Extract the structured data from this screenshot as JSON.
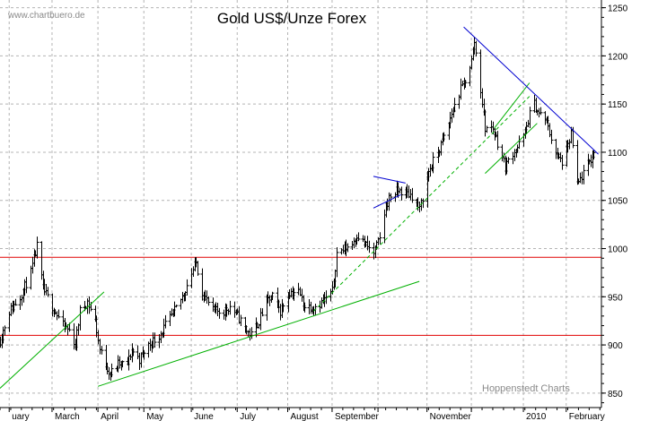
{
  "chart_data": {
    "type": "ohlc",
    "title": "Gold US$/Unze Forex",
    "source_label": "www.chartbuero.de",
    "credit": "Hoppenstedt Charts",
    "ylim": [
      835,
      1258
    ],
    "y_ticks": [
      850,
      900,
      950,
      1000,
      1050,
      1100,
      1150,
      1200,
      1250
    ],
    "x_domain": [
      "2009-01-27",
      "2010-02-24"
    ],
    "x_ticks": [
      {
        "label": "uary",
        "date": "2009-02-02"
      },
      {
        "label": "March",
        "date": "2009-03-02"
      },
      {
        "label": "April",
        "date": "2009-04-01"
      },
      {
        "label": "May",
        "date": "2009-05-01"
      },
      {
        "label": "June",
        "date": "2009-06-01"
      },
      {
        "label": "July",
        "date": "2009-07-01"
      },
      {
        "label": "August",
        "date": "2009-08-03"
      },
      {
        "label": "September",
        "date": "2009-09-01"
      },
      {
        "label": "",
        "date": "2009-10-01"
      },
      {
        "label": "November",
        "date": "2009-11-02"
      },
      {
        "label": "",
        "date": "2009-12-01"
      },
      {
        "label": "2010",
        "date": "2010-01-04"
      },
      {
        "label": "February",
        "date": "2010-02-01"
      }
    ],
    "grid": true,
    "colors": {
      "bars": "#000000",
      "grid": "#b4b4b4",
      "support_line": "#e00000",
      "uptrend": "#00b000",
      "downtrend": "#0000d0"
    },
    "horizontal_levels": [
      991,
      910
    ],
    "trendlines": [
      {
        "style": "uptrend",
        "dashed": false,
        "from": [
          "2009-01-27",
          855
        ],
        "to": [
          "2009-04-05",
          955
        ]
      },
      {
        "style": "uptrend",
        "dashed": false,
        "from": [
          "2009-04-01",
          857
        ],
        "to": [
          "2009-10-28",
          966
        ]
      },
      {
        "style": "uptrend",
        "dashed": true,
        "from": [
          "2009-08-20",
          935
        ],
        "to": [
          "2010-01-08",
          1158
        ]
      },
      {
        "style": "uptrend",
        "dashed": false,
        "from": [
          "2009-12-10",
          1078
        ],
        "to": [
          "2010-01-13",
          1130
        ]
      },
      {
        "style": "uptrend",
        "dashed": false,
        "from": [
          "2009-12-16",
          1125
        ],
        "to": [
          "2010-01-08",
          1172
        ]
      },
      {
        "style": "downtrend",
        "dashed": false,
        "from": [
          "2009-11-26",
          1230
        ],
        "to": [
          "2010-02-22",
          1098
        ]
      },
      {
        "style": "downtrend",
        "dashed": false,
        "from": [
          "2009-09-28",
          1075
        ],
        "to": [
          "2009-10-19",
          1068
        ]
      },
      {
        "style": "downtrend",
        "dashed": false,
        "from": [
          "2009-09-28",
          1042
        ],
        "to": [
          "2009-10-16",
          1056
        ]
      }
    ],
    "price_path": [
      [
        "2009-01-27",
        905
      ],
      [
        "2009-02-02",
        935
      ],
      [
        "2009-02-09",
        950
      ],
      [
        "2009-02-16",
        975
      ],
      [
        "2009-02-20",
        1002
      ],
      [
        "2009-02-24",
        958
      ],
      [
        "2009-03-02",
        940
      ],
      [
        "2009-03-09",
        920
      ],
      [
        "2009-03-13",
        915
      ],
      [
        "2009-03-17",
        900
      ],
      [
        "2009-03-20",
        935
      ],
      [
        "2009-03-25",
        945
      ],
      [
        "2009-03-30",
        925
      ],
      [
        "2009-04-02",
        895
      ],
      [
        "2009-04-06",
        880
      ],
      [
        "2009-04-09",
        870
      ],
      [
        "2009-04-14",
        880
      ],
      [
        "2009-04-20",
        880
      ],
      [
        "2009-04-23",
        895
      ],
      [
        "2009-04-28",
        885
      ],
      [
        "2009-05-04",
        900
      ],
      [
        "2009-05-11",
        910
      ],
      [
        "2009-05-15",
        920
      ],
      [
        "2009-05-21",
        935
      ],
      [
        "2009-05-26",
        950
      ],
      [
        "2009-06-01",
        975
      ],
      [
        "2009-06-04",
        985
      ],
      [
        "2009-06-08",
        955
      ],
      [
        "2009-06-15",
        935
      ],
      [
        "2009-06-22",
        935
      ],
      [
        "2009-06-26",
        940
      ],
      [
        "2009-07-01",
        930
      ],
      [
        "2009-07-07",
        915
      ],
      [
        "2009-07-10",
        910
      ],
      [
        "2009-07-15",
        925
      ],
      [
        "2009-07-20",
        945
      ],
      [
        "2009-07-24",
        950
      ],
      [
        "2009-07-29",
        935
      ],
      [
        "2009-08-04",
        955
      ],
      [
        "2009-08-10",
        955
      ],
      [
        "2009-08-14",
        940
      ],
      [
        "2009-08-20",
        940
      ],
      [
        "2009-08-26",
        945
      ],
      [
        "2009-09-01",
        955
      ],
      [
        "2009-09-04",
        995
      ],
      [
        "2009-09-09",
        1000
      ],
      [
        "2009-09-14",
        1005
      ],
      [
        "2009-09-17",
        1015
      ],
      [
        "2009-09-22",
        1005
      ],
      [
        "2009-09-28",
        995
      ],
      [
        "2009-10-02",
        1010
      ],
      [
        "2009-10-06",
        1045
      ],
      [
        "2009-10-09",
        1055
      ],
      [
        "2009-10-14",
        1060
      ],
      [
        "2009-10-19",
        1058
      ],
      [
        "2009-10-23",
        1055
      ],
      [
        "2009-10-28",
        1040
      ],
      [
        "2009-11-03",
        1080
      ],
      [
        "2009-11-09",
        1100
      ],
      [
        "2009-11-13",
        1115
      ],
      [
        "2009-11-18",
        1140
      ],
      [
        "2009-11-24",
        1165
      ],
      [
        "2009-11-27",
        1175
      ],
      [
        "2009-12-01",
        1195
      ],
      [
        "2009-12-03",
        1215
      ],
      [
        "2009-12-07",
        1165
      ],
      [
        "2009-12-10",
        1125
      ],
      [
        "2009-12-15",
        1125
      ],
      [
        "2009-12-18",
        1110
      ],
      [
        "2009-12-23",
        1085
      ],
      [
        "2009-12-28",
        1100
      ],
      [
        "2009-12-31",
        1105
      ],
      [
        "2010-01-05",
        1120
      ],
      [
        "2010-01-08",
        1140
      ],
      [
        "2010-01-11",
        1150
      ],
      [
        "2010-01-14",
        1140
      ],
      [
        "2010-01-18",
        1135
      ],
      [
        "2010-01-21",
        1120
      ],
      [
        "2010-01-26",
        1095
      ],
      [
        "2010-01-29",
        1090
      ],
      [
        "2010-02-02",
        1105
      ],
      [
        "2010-02-04",
        1120
      ],
      [
        "2010-02-08",
        1065
      ],
      [
        "2010-02-11",
        1075
      ],
      [
        "2010-02-16",
        1090
      ],
      [
        "2010-02-19",
        1098
      ]
    ]
  }
}
